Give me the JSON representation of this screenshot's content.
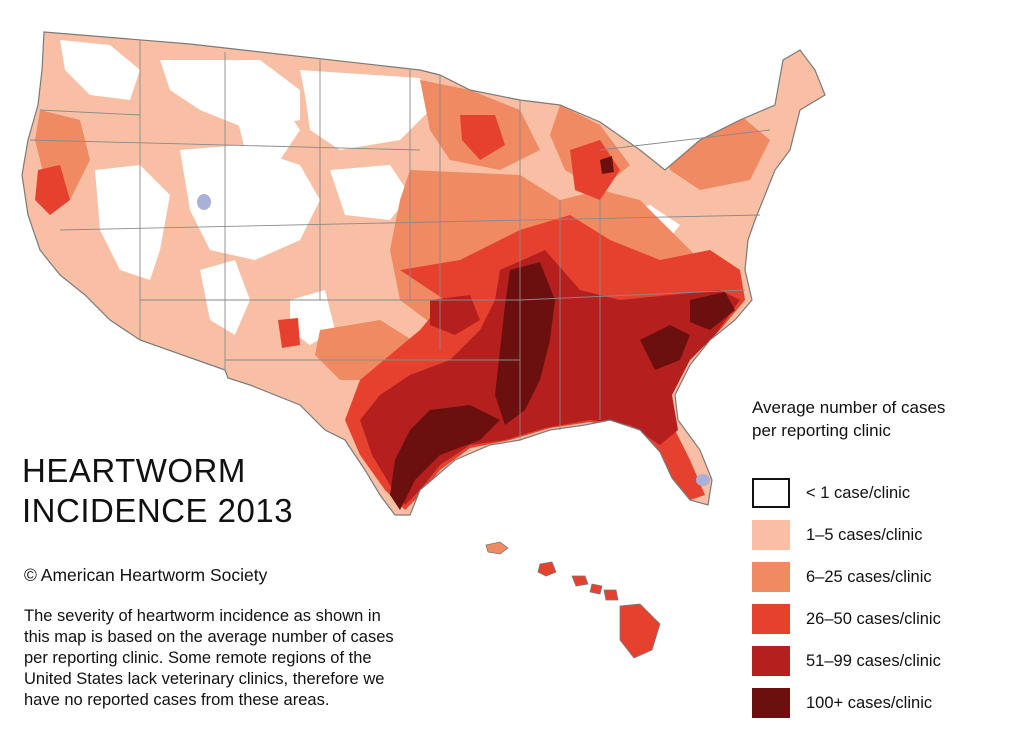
{
  "title": {
    "line1": "HEARTWORM",
    "line2": "INCIDENCE 2013"
  },
  "copyright": "© American Heartworm Society",
  "description": [
    "The severity of heartworm incidence as shown in",
    "this map is based on the average number of cases",
    "per reporting clinic. Some remote regions of the",
    "United States lack veterinary clinics, therefore we",
    "have no reported cases from these areas."
  ],
  "legend": {
    "title_line1": "Average number of cases",
    "title_line2": "per reporting clinic",
    "items": [
      {
        "label": "< 1 case/clinic",
        "color": "#ffffff"
      },
      {
        "label": "1–5 cases/clinic",
        "color": "#f8bfa4"
      },
      {
        "label": "6–25 cases/clinic",
        "color": "#ef8a62"
      },
      {
        "label": "26–50 cases/clinic",
        "color": "#e6412f"
      },
      {
        "label": "51–99 cases/clinic",
        "color": "#b5201f"
      },
      {
        "label": "100+ cases/clinic",
        "color": "#6b100f"
      }
    ]
  },
  "colors": {
    "none": "#ffffff",
    "low": "#f8bfa4",
    "mid": "#ef8a62",
    "high": "#e6412f",
    "very_high": "#b5201f",
    "extreme": "#6b100f",
    "water": "#aab0d8",
    "state_border": "#8a8a8a"
  }
}
